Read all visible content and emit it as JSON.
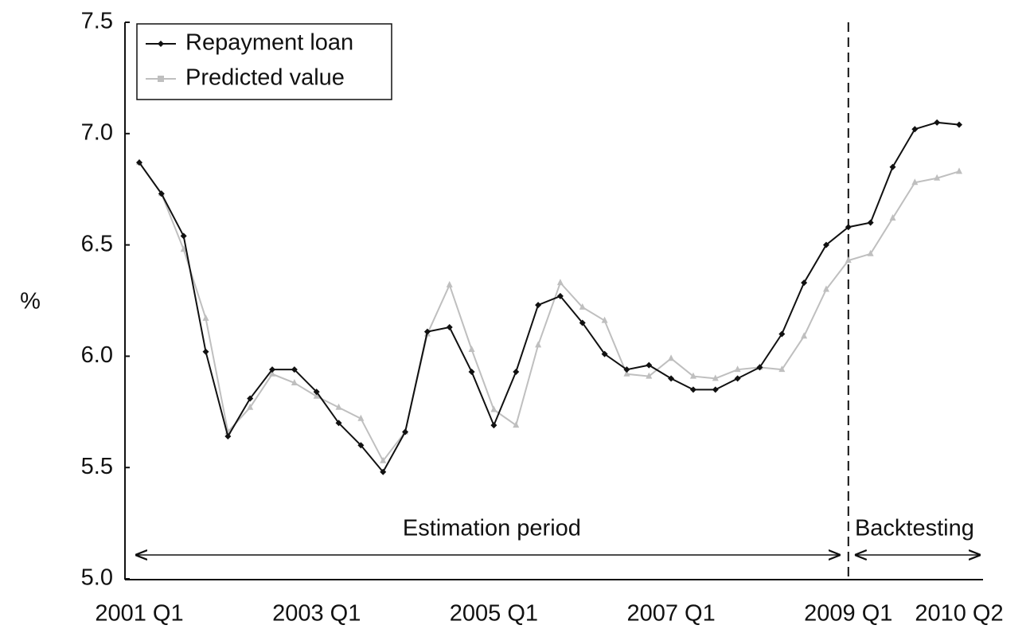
{
  "chart_data": {
    "type": "line",
    "y_label": "%",
    "categories": [
      "2001 Q1",
      null,
      null,
      null,
      null,
      null,
      null,
      null,
      "2003 Q1",
      null,
      null,
      null,
      null,
      null,
      null,
      null,
      "2005 Q1",
      null,
      null,
      null,
      null,
      null,
      null,
      null,
      "2007 Q1",
      null,
      null,
      null,
      null,
      null,
      null,
      null,
      "2009 Q1",
      null,
      null,
      null,
      null,
      "2010 Q2"
    ],
    "series": [
      {
        "name": "Repayment loan",
        "color": "#111111",
        "marker": "diamond",
        "values": [
          6.87,
          6.73,
          6.54,
          6.02,
          5.64,
          5.81,
          5.94,
          5.94,
          5.84,
          5.7,
          5.6,
          5.48,
          5.66,
          6.11,
          6.13,
          5.93,
          5.69,
          5.93,
          6.23,
          6.27,
          6.15,
          6.01,
          5.94,
          5.96,
          5.9,
          5.85,
          5.85,
          5.9,
          5.95,
          6.1,
          6.33,
          6.5,
          6.58,
          6.6,
          6.85,
          7.02,
          7.05,
          7.04
        ]
      },
      {
        "name": "Predicted value",
        "color": "#bfbfbf",
        "marker": "triangle",
        "values": [
          6.87,
          6.73,
          6.48,
          6.17,
          5.66,
          5.77,
          5.92,
          5.88,
          5.82,
          5.77,
          5.72,
          5.53,
          5.66,
          6.1,
          6.32,
          6.03,
          5.76,
          5.69,
          6.05,
          6.33,
          6.22,
          6.16,
          5.92,
          5.91,
          5.99,
          5.91,
          5.9,
          5.94,
          5.95,
          5.94,
          6.09,
          6.3,
          6.43,
          6.46,
          6.62,
          6.78,
          6.8,
          6.83
        ]
      }
    ],
    "ylim": [
      5.0,
      7.5
    ],
    "yticks": [
      {
        "value": 5,
        "label": "5.0"
      },
      5.5,
      {
        "value": 6,
        "label": "6.0"
      },
      6.5,
      {
        "value": 7,
        "label": "7.0"
      },
      7.5
    ],
    "grid": false,
    "legend": "upper left",
    "vline": "2009 Q1",
    "period_labels": [
      "Estimation period",
      "Backtesting"
    ]
  }
}
